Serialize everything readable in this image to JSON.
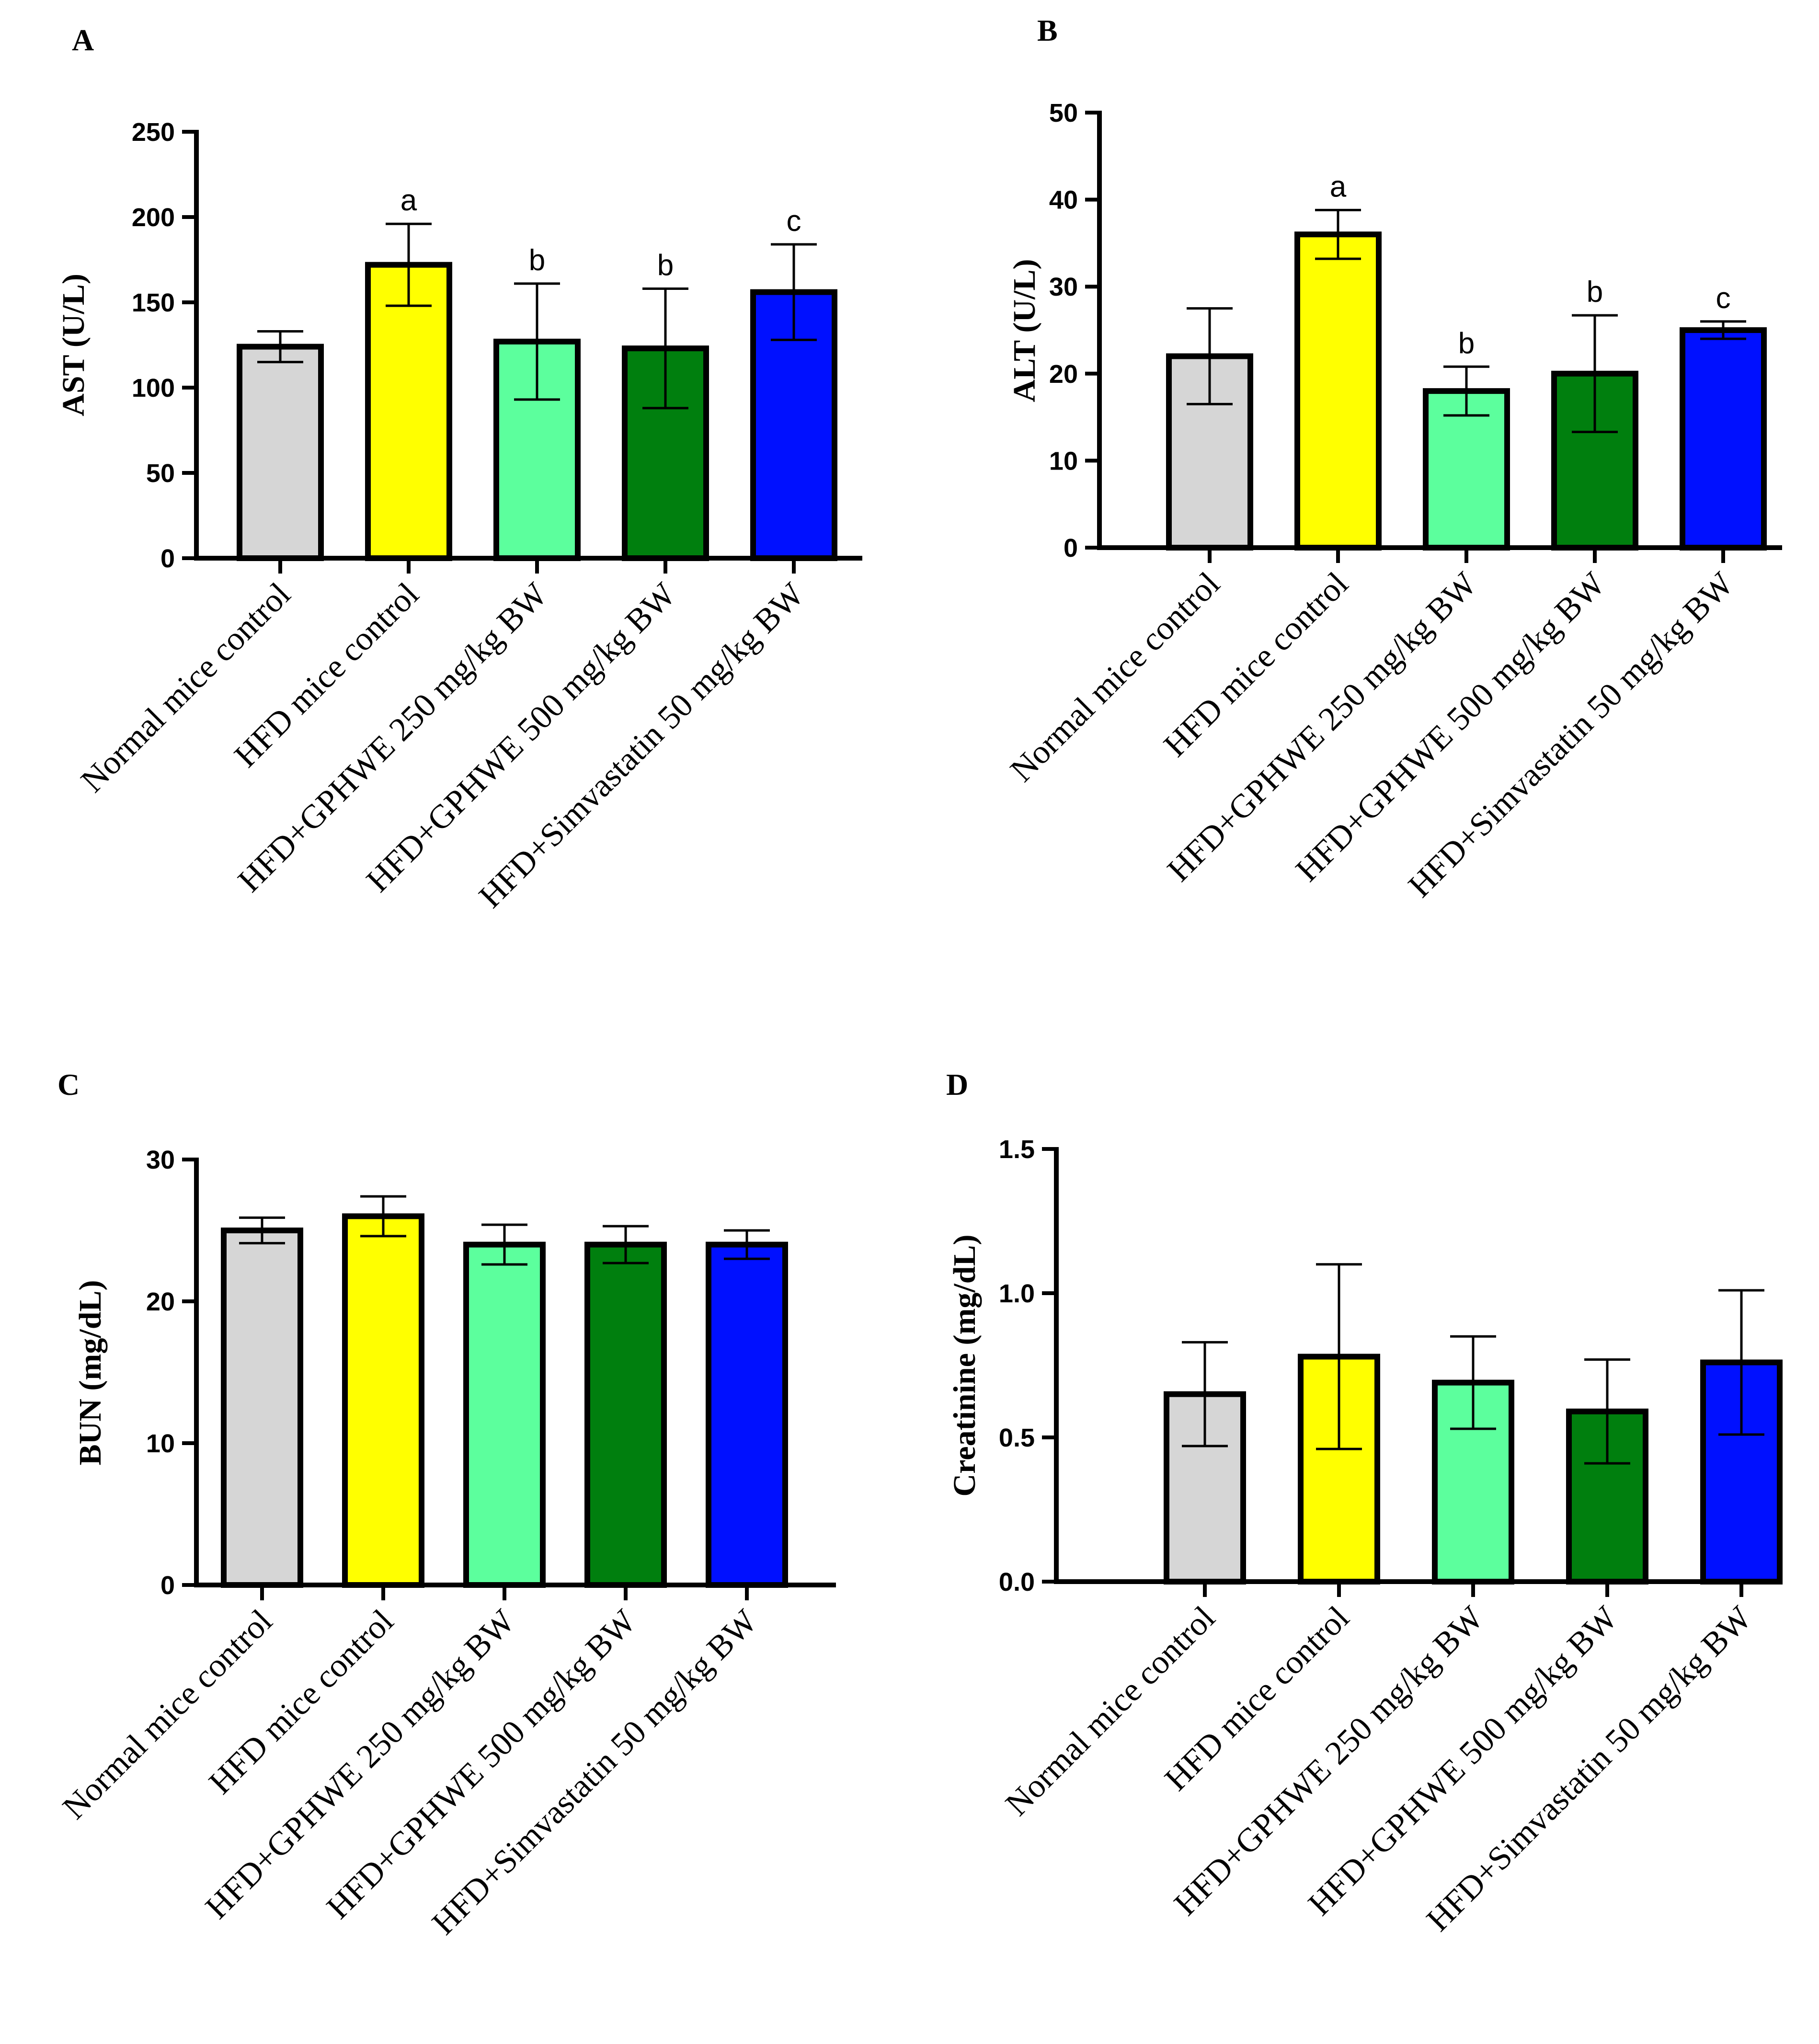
{
  "colors": {
    "axis": "#000000",
    "series": [
      "#d6d6d6",
      "#ffff00",
      "#5cff9d",
      "#007f0e",
      "#0010ff"
    ]
  },
  "chart_data": [
    {
      "panel": "A",
      "type": "bar",
      "ylabel": "AST (U/L)",
      "categories": [
        "Normal mice control",
        "HFD mice control",
        "HFD+GPHWE 250 mg/kg BW",
        "HFD+GPHWE 500 mg/kg BW",
        "HFD+Simvastatin 50 mg/kg BW"
      ],
      "values": [
        124,
        172,
        127,
        123,
        156
      ],
      "errors": [
        9,
        24,
        34,
        35,
        28
      ],
      "significance": [
        "",
        "a",
        "b",
        "b",
        "c"
      ],
      "ylim": [
        0,
        250
      ],
      "yticks": [
        0,
        50,
        100,
        150,
        200,
        250
      ],
      "ytick_labels": [
        "0",
        "50",
        "100",
        "150",
        "200",
        "250"
      ]
    },
    {
      "panel": "B",
      "type": "bar",
      "ylabel": "ALT (U/L)",
      "categories": [
        "Normal mice control",
        "HFD mice control",
        "HFD+GPHWE 250 mg/kg BW",
        "HFD+GPHWE 500 mg/kg BW",
        "HFD+Simvastatin 50 mg/kg BW"
      ],
      "values": [
        22,
        36,
        18,
        20,
        25
      ],
      "errors": [
        5.5,
        2.8,
        2.8,
        6.7,
        1
      ],
      "significance": [
        "",
        "a",
        "b",
        "b",
        "c"
      ],
      "ylim": [
        0,
        50
      ],
      "yticks": [
        0,
        10,
        20,
        30,
        40,
        50
      ],
      "ytick_labels": [
        "0",
        "10",
        "20",
        "30",
        "40",
        "50"
      ]
    },
    {
      "panel": "C",
      "type": "bar",
      "ylabel": "BUN (mg/dL)",
      "categories": [
        "Normal mice control",
        "HFD mice control",
        "HFD+GPHWE 250 mg/kg BW",
        "HFD+GPHWE 500 mg/kg BW",
        "HFD+Simvastatin 50 mg/kg BW"
      ],
      "values": [
        25,
        26,
        24,
        24,
        24
      ],
      "errors": [
        0.9,
        1.4,
        1.4,
        1.3,
        1
      ],
      "significance": [
        "",
        "",
        "",
        "",
        ""
      ],
      "ylim": [
        0,
        30
      ],
      "yticks": [
        0,
        10,
        20,
        30
      ],
      "ytick_labels": [
        "0",
        "10",
        "20",
        "30"
      ]
    },
    {
      "panel": "D",
      "type": "bar",
      "ylabel": "Creatinine (mg/dL)",
      "categories": [
        "Normal mice control",
        "HFD mice control",
        "HFD+GPHWE 250 mg/kg BW",
        "HFD+GPHWE 500 mg/kg BW",
        "HFD+Simvastatin 50 mg/kg BW"
      ],
      "values": [
        0.65,
        0.78,
        0.69,
        0.59,
        0.76
      ],
      "errors": [
        0.18,
        0.32,
        0.16,
        0.18,
        0.25
      ],
      "significance": [
        "",
        "",
        "",
        "",
        ""
      ],
      "ylim": [
        0,
        1.5
      ],
      "yticks": [
        0,
        0.5,
        1.0,
        1.5
      ],
      "ytick_labels": [
        "0.0",
        "0.5",
        "1.0",
        "1.5"
      ]
    }
  ]
}
